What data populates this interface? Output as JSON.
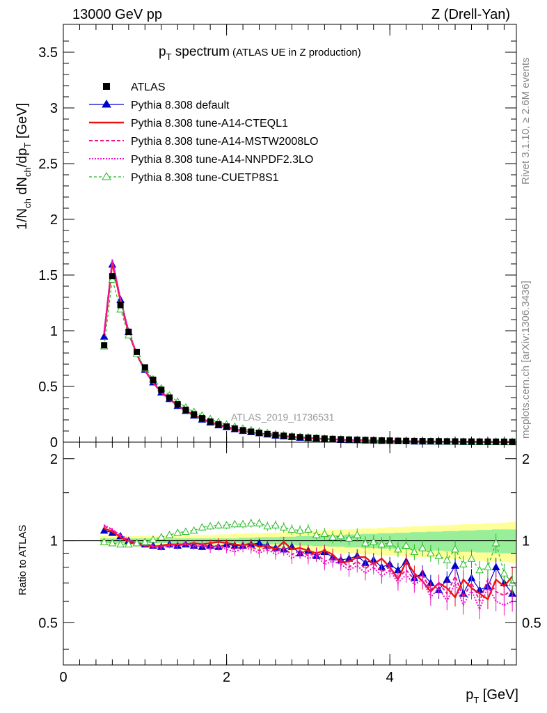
{
  "header": {
    "left": "13000 GeV pp",
    "right": "Z (Drell-Yan)"
  },
  "side_text": {
    "top": "Rivet 3.1.10, ≥ 2.6M events",
    "bottom": "mcplots.cern.ch [arXiv:1306.3436]"
  },
  "watermark": "ATLAS_2019_I1736531",
  "title": {
    "main": "p",
    "main_sub": "T",
    "main_rest": " spectrum",
    "paren": "(ATLAS UE in Z production)"
  },
  "axes": {
    "xlabel": "p",
    "xlabel_sub": "T",
    "xlabel_rest": " [GeV]",
    "ylabel": "1/N_ch dN_ch/dp_T [GeV]",
    "ratio_ylabel": "Ratio to ATLAS",
    "x_ticks": [
      "0",
      "2",
      "4"
    ],
    "y_ticks": [
      "0",
      "0.5",
      "1",
      "1.5",
      "2",
      "2.5",
      "3",
      "3.5"
    ],
    "ratio_ticks": [
      "0.5",
      "1",
      "2"
    ]
  },
  "legend": [
    {
      "label": "ATLAS",
      "color": "#000000",
      "marker": "square"
    },
    {
      "label": "Pythia 8.308 default",
      "color": "#0000cc",
      "marker": "triangle"
    },
    {
      "label": "Pythia 8.308 tune-A14-CTEQL1",
      "color": "#ee1111",
      "marker": "none"
    },
    {
      "label": "Pythia 8.308 tune-A14-MSTW2008LO",
      "color": "#ee1188",
      "marker": "none"
    },
    {
      "label": "Pythia 8.308 tune-A14-NNPDF2.3LO",
      "color": "#ee11cc",
      "marker": "none"
    },
    {
      "label": "Pythia 8.308 tune-CUETP8S1",
      "color": "#22bb22",
      "marker": "open-triangle"
    }
  ],
  "chart_data": {
    "type": "line",
    "title": "pT spectrum (ATLAS UE in Z production)",
    "xlabel": "pT [GeV]",
    "ylabel": "1/Nch dNch/dpT [GeV]",
    "xlim": [
      0,
      5.55
    ],
    "ylim": [
      0,
      3.75
    ],
    "ratio_ylim": [
      0.35,
      2.3
    ],
    "x": [
      0.5,
      0.6,
      0.7,
      0.8,
      0.9,
      1.0,
      1.1,
      1.2,
      1.3,
      1.4,
      1.5,
      1.6,
      1.7,
      1.8,
      1.9,
      2.0,
      2.1,
      2.2,
      2.3,
      2.4,
      2.5,
      2.6,
      2.7,
      2.8,
      2.9,
      3.0,
      3.1,
      3.2,
      3.3,
      3.4,
      3.5,
      3.6,
      3.7,
      3.8,
      3.9,
      4.0,
      4.1,
      4.2,
      4.3,
      4.4,
      4.5,
      4.6,
      4.7,
      4.8,
      4.9,
      5.0,
      5.1,
      5.2,
      5.3,
      5.4,
      5.5
    ],
    "data_values": [
      0.87,
      1.49,
      1.23,
      0.99,
      0.81,
      0.67,
      0.56,
      0.47,
      0.4,
      0.34,
      0.29,
      0.25,
      0.215,
      0.185,
      0.16,
      0.14,
      0.122,
      0.107,
      0.094,
      0.083,
      0.073,
      0.064,
      0.057,
      0.05,
      0.045,
      0.04,
      0.036,
      0.032,
      0.029,
      0.026,
      0.023,
      0.021,
      0.019,
      0.017,
      0.015,
      0.014,
      0.012,
      0.011,
      0.01,
      0.009,
      0.0085,
      0.0078,
      0.0071,
      0.0065,
      0.006,
      0.0055,
      0.005,
      0.0046,
      0.0042,
      0.0039,
      0.0036
    ],
    "series": [
      {
        "name": "Pythia 8.308 default",
        "ratio": [
          1.09,
          1.07,
          1.04,
          1.0,
          0.98,
          0.97,
          0.96,
          0.95,
          0.97,
          0.96,
          0.97,
          0.96,
          0.95,
          0.96,
          0.95,
          0.97,
          0.96,
          0.96,
          0.97,
          0.98,
          0.96,
          0.94,
          0.93,
          0.95,
          0.9,
          0.92,
          0.88,
          0.91,
          0.87,
          0.85,
          0.86,
          0.88,
          0.83,
          0.85,
          0.8,
          0.82,
          0.78,
          0.84,
          0.73,
          0.76,
          0.7,
          0.66,
          0.72,
          0.81,
          0.64,
          0.73,
          0.66,
          0.68,
          0.8,
          0.7,
          0.64
        ]
      },
      {
        "name": "Pythia 8.308 tune-A14-CTEQL1",
        "ratio": [
          1.11,
          1.08,
          1.03,
          0.99,
          0.97,
          0.96,
          0.95,
          0.96,
          0.97,
          0.97,
          0.97,
          0.98,
          0.97,
          0.98,
          0.99,
          0.98,
          0.97,
          0.96,
          0.98,
          0.95,
          0.96,
          0.93,
          0.99,
          0.93,
          0.94,
          0.92,
          0.9,
          0.92,
          0.89,
          0.83,
          0.84,
          0.87,
          0.87,
          0.82,
          0.86,
          0.8,
          0.72,
          0.84,
          0.76,
          0.71,
          0.65,
          0.7,
          0.67,
          0.62,
          0.72,
          0.67,
          0.64,
          0.61,
          0.72,
          0.68,
          0.74
        ]
      },
      {
        "name": "Pythia 8.308 tune-A14-MSTW2008LO",
        "ratio": [
          1.13,
          1.1,
          1.04,
          1.0,
          0.98,
          0.97,
          0.96,
          0.95,
          0.96,
          0.97,
          0.98,
          0.96,
          0.97,
          0.95,
          0.96,
          0.95,
          0.93,
          0.96,
          0.95,
          0.92,
          0.95,
          0.91,
          0.94,
          0.89,
          0.92,
          0.88,
          0.9,
          0.84,
          0.86,
          0.85,
          0.8,
          0.84,
          0.79,
          0.83,
          0.77,
          0.8,
          0.73,
          0.78,
          0.72,
          0.75,
          0.66,
          0.7,
          0.64,
          0.74,
          0.62,
          0.7,
          0.6,
          0.72,
          0.65,
          0.63,
          0.66
        ]
      },
      {
        "name": "Pythia 8.308 tune-A14-NNPDF2.3LO",
        "ratio": [
          1.14,
          1.1,
          1.05,
          1.01,
          0.98,
          0.96,
          0.95,
          0.94,
          0.96,
          0.95,
          0.97,
          0.95,
          0.96,
          0.93,
          0.95,
          0.93,
          0.91,
          0.94,
          0.93,
          0.9,
          0.93,
          0.89,
          0.92,
          0.86,
          0.9,
          0.86,
          0.88,
          0.82,
          0.84,
          0.82,
          0.78,
          0.81,
          0.76,
          0.8,
          0.74,
          0.78,
          0.7,
          0.75,
          0.69,
          0.72,
          0.62,
          0.67,
          0.6,
          0.7,
          0.58,
          0.66,
          0.56,
          0.68,
          0.6,
          0.58,
          0.6
        ]
      },
      {
        "name": "Pythia 8.308 tune-CUETP8S1",
        "ratio": [
          0.99,
          0.98,
          0.97,
          0.97,
          0.98,
          0.99,
          1.01,
          1.03,
          1.05,
          1.07,
          1.08,
          1.09,
          1.12,
          1.13,
          1.14,
          1.14,
          1.15,
          1.15,
          1.16,
          1.16,
          1.13,
          1.14,
          1.12,
          1.1,
          1.09,
          1.1,
          1.05,
          1.06,
          1.03,
          1.04,
          1.02,
          1.05,
          0.98,
          0.99,
          0.97,
          0.98,
          0.93,
          0.96,
          0.91,
          0.94,
          0.9,
          0.88,
          0.85,
          0.93,
          0.82,
          0.86,
          0.78,
          0.8,
          0.98,
          0.76,
          0.7
        ]
      }
    ],
    "uncertainty_band": {
      "stat_frac": [
        0.02,
        0.02,
        0.02,
        0.02,
        0.02,
        0.02,
        0.02,
        0.02,
        0.02,
        0.02,
        0.02,
        0.02,
        0.02,
        0.02,
        0.02,
        0.02,
        0.02,
        0.025,
        0.025,
        0.03,
        0.03,
        0.03,
        0.035,
        0.035,
        0.04,
        0.04,
        0.045,
        0.045,
        0.05,
        0.05,
        0.055,
        0.055,
        0.06,
        0.06,
        0.065,
        0.065,
        0.07,
        0.07,
        0.075,
        0.075,
        0.08,
        0.08,
        0.085,
        0.085,
        0.09,
        0.09,
        0.095,
        0.095,
        0.1,
        0.1,
        0.1
      ],
      "total_frac": [
        0.04,
        0.04,
        0.04,
        0.04,
        0.04,
        0.04,
        0.04,
        0.04,
        0.04,
        0.045,
        0.045,
        0.05,
        0.05,
        0.05,
        0.055,
        0.055,
        0.06,
        0.06,
        0.065,
        0.065,
        0.07,
        0.07,
        0.075,
        0.08,
        0.08,
        0.085,
        0.09,
        0.09,
        0.095,
        0.1,
        0.1,
        0.105,
        0.11,
        0.11,
        0.115,
        0.12,
        0.12,
        0.125,
        0.13,
        0.13,
        0.135,
        0.14,
        0.14,
        0.145,
        0.15,
        0.15,
        0.155,
        0.16,
        0.16,
        0.165,
        0.17
      ]
    }
  }
}
